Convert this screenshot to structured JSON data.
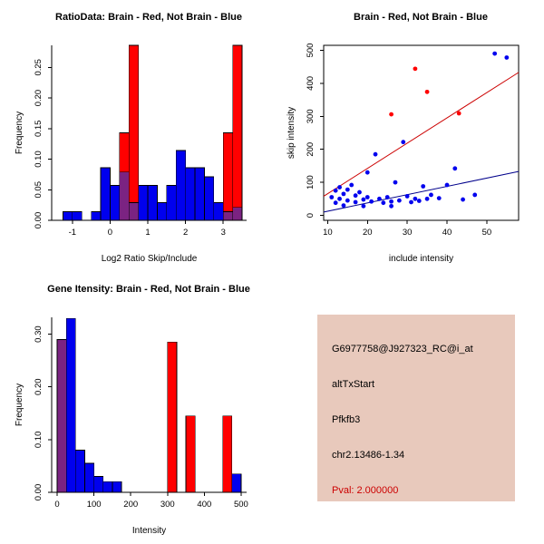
{
  "colors": {
    "brain": "#FF0000",
    "not_brain": "#0000EE",
    "overlap": "#7B2382",
    "brain_line": "#CC0000",
    "not_brain_line": "#00008B",
    "info_bg": "#E8C9BC",
    "pval_color": "#CC0000"
  },
  "info_box": {
    "probe_id": "G6977758@J927323_RC@i_at",
    "event_type": "altTxStart",
    "gene": "Pfkfb3",
    "location": "chr2.13486-1.34",
    "pval": "Pval: 2.000000"
  },
  "chart_data": [
    {
      "id": "ratio-histogram",
      "type": "bar",
      "title": "RatioData: Brain - Red, Not Brain - Blue",
      "xlabel": "Log2 Ratio Skip/Include",
      "ylabel": "Frequency",
      "xlim": [
        -1.55,
        3.62
      ],
      "ylim": [
        0,
        0.286
      ],
      "xticks": [
        -1,
        0,
        1,
        2,
        3
      ],
      "xtick_labels": [
        "-1",
        "0",
        "1",
        "2",
        "3"
      ],
      "yticks": [
        0,
        0.05,
        0.1,
        0.15,
        0.2,
        0.25
      ],
      "ytick_labels": [
        "0.00",
        "0.05",
        "0.10",
        "0.15",
        "0.20",
        "0.25"
      ],
      "bin_width": 0.25,
      "grid": false,
      "overlap_color": "#7B2382",
      "series": [
        {
          "name": "Brain",
          "color": "#FF0000",
          "bins": [
            {
              "x": 0.25,
              "h": 0.143
            },
            {
              "x": 0.5,
              "h": 0.286
            },
            {
              "x": 3.0,
              "h": 0.143
            },
            {
              "x": 3.25,
              "h": 0.286
            }
          ]
        },
        {
          "name": "Not Brain",
          "color": "#0000EE",
          "bins": [
            {
              "x": -1.25,
              "h": 0.014
            },
            {
              "x": -1.0,
              "h": 0.014
            },
            {
              "x": -0.5,
              "h": 0.014
            },
            {
              "x": -0.25,
              "h": 0.086
            },
            {
              "x": 0.0,
              "h": 0.057
            },
            {
              "x": 0.25,
              "h": 0.079
            },
            {
              "x": 0.5,
              "h": 0.029
            },
            {
              "x": 0.75,
              "h": 0.057
            },
            {
              "x": 1.0,
              "h": 0.057
            },
            {
              "x": 1.25,
              "h": 0.029
            },
            {
              "x": 1.5,
              "h": 0.057
            },
            {
              "x": 1.75,
              "h": 0.114
            },
            {
              "x": 2.0,
              "h": 0.086
            },
            {
              "x": 2.25,
              "h": 0.086
            },
            {
              "x": 2.5,
              "h": 0.071
            },
            {
              "x": 2.75,
              "h": 0.029
            },
            {
              "x": 3.0,
              "h": 0.014
            },
            {
              "x": 3.25,
              "h": 0.021
            }
          ]
        }
      ]
    },
    {
      "id": "intensity-scatter",
      "type": "scatter",
      "title": "Brain - Red, Not Brain - Blue",
      "xlabel": "include intensity",
      "ylabel": "skip intensity",
      "xlim": [
        9,
        58
      ],
      "ylim": [
        -15,
        515
      ],
      "xticks": [
        10,
        20,
        30,
        40,
        50
      ],
      "xtick_labels": [
        "10",
        "20",
        "30",
        "40",
        "50"
      ],
      "yticks": [
        0,
        100,
        200,
        300,
        400,
        500
      ],
      "ytick_labels": [
        "0",
        "100",
        "200",
        "300",
        "400",
        "500"
      ],
      "grid": false,
      "box": true,
      "series": [
        {
          "name": "Not Brain",
          "color": "#0000EE",
          "points": [
            [
              11,
              55
            ],
            [
              12,
              75
            ],
            [
              12,
              38
            ],
            [
              13,
              85
            ],
            [
              13,
              50
            ],
            [
              14,
              65
            ],
            [
              14,
              30
            ],
            [
              15,
              78
            ],
            [
              15,
              45
            ],
            [
              16,
              92
            ],
            [
              17,
              60
            ],
            [
              17,
              40
            ],
            [
              18,
              70
            ],
            [
              19,
              48
            ],
            [
              19,
              28
            ],
            [
              20,
              130
            ],
            [
              20,
              55
            ],
            [
              21,
              42
            ],
            [
              22,
              185
            ],
            [
              23,
              50
            ],
            [
              24,
              38
            ],
            [
              25,
              55
            ],
            [
              26,
              42
            ],
            [
              26,
              28
            ],
            [
              27,
              100
            ],
            [
              28,
              45
            ],
            [
              29,
              222
            ],
            [
              30,
              58
            ],
            [
              31,
              40
            ],
            [
              32,
              50
            ],
            [
              33,
              44
            ],
            [
              34,
              88
            ],
            [
              35,
              50
            ],
            [
              36,
              62
            ],
            [
              38,
              52
            ],
            [
              40,
              92
            ],
            [
              42,
              142
            ],
            [
              44,
              48
            ],
            [
              47,
              62
            ],
            [
              52,
              490
            ],
            [
              55,
              478
            ]
          ]
        },
        {
          "name": "Brain",
          "color": "#FF0000",
          "points": [
            [
              26,
              306
            ],
            [
              32,
              444
            ],
            [
              35,
              374
            ],
            [
              43,
              309
            ]
          ]
        }
      ],
      "lines": [
        {
          "name": "brain-fit",
          "color": "#CC0000",
          "x1": 9,
          "y1": 58,
          "x2": 58,
          "y2": 433
        },
        {
          "name": "not-brain-fit",
          "color": "#00008B",
          "x1": 9,
          "y1": 10,
          "x2": 58,
          "y2": 133
        }
      ]
    },
    {
      "id": "gene-intensity-histogram",
      "type": "bar",
      "title": "Gene Itensity: Brain - Red, Not Brain - Blue",
      "xlabel": "Intensity",
      "ylabel": "Frequency",
      "xlim": [
        -15,
        515
      ],
      "ylim": [
        0,
        0.332
      ],
      "xticks": [
        0,
        100,
        200,
        300,
        400,
        500
      ],
      "xtick_labels": [
        "0",
        "100",
        "200",
        "300",
        "400",
        "500"
      ],
      "yticks": [
        0,
        0.1,
        0.2,
        0.3
      ],
      "ytick_labels": [
        "0.00",
        "0.10",
        "0.20",
        "0.30"
      ],
      "bin_width": 25,
      "grid": false,
      "overlap_color": "#7B2382",
      "series": [
        {
          "name": "Brain",
          "color": "#FF0000",
          "bins": [
            {
              "x": 0,
              "h": 0.29
            },
            {
              "x": 300,
              "h": 0.285
            },
            {
              "x": 350,
              "h": 0.145
            },
            {
              "x": 450,
              "h": 0.145
            }
          ]
        },
        {
          "name": "Not Brain",
          "color": "#0000EE",
          "bins": [
            {
              "x": 0,
              "h": 0.29
            },
            {
              "x": 25,
              "h": 0.33
            },
            {
              "x": 50,
              "h": 0.08
            },
            {
              "x": 75,
              "h": 0.055
            },
            {
              "x": 100,
              "h": 0.03
            },
            {
              "x": 125,
              "h": 0.02
            },
            {
              "x": 150,
              "h": 0.02
            },
            {
              "x": 475,
              "h": 0.035
            }
          ]
        }
      ]
    }
  ]
}
